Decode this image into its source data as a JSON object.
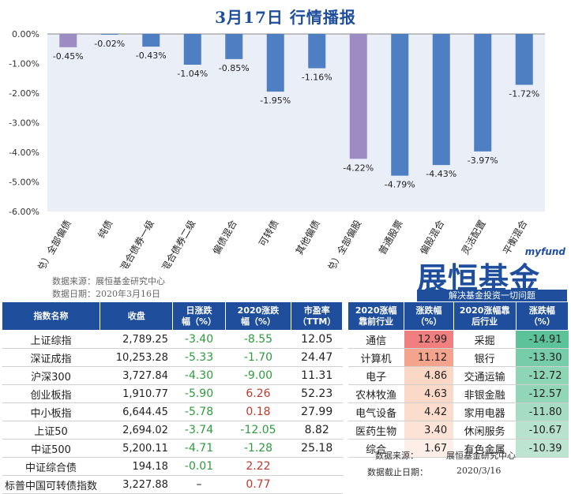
{
  "title": "3月17日  行情播报",
  "chart_data": {
    "type": "bar",
    "categories": [
      "（总）全部偏债",
      "纯债",
      "混合债券一级",
      "混合债券二级",
      "偏债混合",
      "可转债",
      "其他偏债",
      "（总）全部偏股",
      "普通股票",
      "偏股混合",
      "灵活配置",
      "平衡混合"
    ],
    "values": [
      -0.45,
      -0.02,
      -0.43,
      -1.04,
      -0.85,
      -1.95,
      -1.16,
      -4.22,
      -4.79,
      -4.43,
      -3.97,
      -1.72
    ],
    "data_labels": [
      "-0.45%",
      "-0.02%",
      "-0.43%",
      "-1.04%",
      "-0.85%",
      "-1.95%",
      "-1.16%",
      "-4.22%",
      "-4.79%",
      "-4.43%",
      "-3.97%",
      "-1.72%"
    ],
    "y_ticks": [
      "0.00%",
      "-1.00%",
      "-2.00%",
      "-3.00%",
      "-4.00%",
      "-5.00%",
      "-6.00%"
    ],
    "ylim": [
      -6,
      0
    ],
    "colors": {
      "summary": "#9d8cc4",
      "normal": "#4e7fc3"
    },
    "summary_indices": [
      0,
      7
    ]
  },
  "chart_source": {
    "line1": "数据来源：展恒基金研究中心",
    "line2": "数据日期：2020年3月16日"
  },
  "logo": {
    "small": "myfund",
    "big": "展恒基金",
    "slogan": "解决基金投资一切问题"
  },
  "index_table": {
    "headers": [
      "指数名称",
      "收盘",
      "日涨跌\n幅（%）",
      "2020涨跌\n幅（%）",
      "市盈率\n（TTM）"
    ],
    "rows": [
      {
        "name": "上证综指",
        "close": "2,789.25",
        "day": "-3.40",
        "ytd": "-8.55",
        "pe": "12.05"
      },
      {
        "name": "深证成指",
        "close": "10,253.28",
        "day": "-5.33",
        "ytd": "-1.70",
        "pe": "24.47"
      },
      {
        "name": "沪深300",
        "close": "3,727.84",
        "day": "-4.30",
        "ytd": "-9.00",
        "pe": "11.31"
      },
      {
        "name": "创业板指",
        "close": "1,910.77",
        "day": "-5.90",
        "ytd": "6.26",
        "pe": "52.23"
      },
      {
        "name": "中小板指",
        "close": "6,644.45",
        "day": "-5.78",
        "ytd": "0.18",
        "pe": "27.99"
      },
      {
        "name": "上证50",
        "close": "2,694.02",
        "day": "-3.74",
        "ytd": "-12.05",
        "pe": "8.82"
      },
      {
        "name": "中证500",
        "close": "5,200.11",
        "day": "-4.71",
        "ytd": "-1.28",
        "pe": "25.18"
      },
      {
        "name": "中证综合债",
        "close": "194.18",
        "day": "-0.01",
        "ytd": "2.22",
        "pe": ""
      },
      {
        "name": "标普中国可转债指数",
        "close": "3,227.88",
        "day": "–",
        "ytd": "0.77",
        "pe": ""
      }
    ]
  },
  "industry_table": {
    "headers": [
      "2020涨幅\n靠前行业",
      "涨跌幅\n（%）",
      "2020涨幅靠\n后行业",
      "涨跌幅\n（%）"
    ],
    "rows": [
      {
        "top": "通信",
        "top_val": "12.99",
        "bottom": "采掘",
        "bottom_val": "-14.91"
      },
      {
        "top": "计算机",
        "top_val": "11.12",
        "bottom": "银行",
        "bottom_val": "-13.30"
      },
      {
        "top": "电子",
        "top_val": "4.86",
        "bottom": "交通运输",
        "bottom_val": "-12.72"
      },
      {
        "top": "农林牧渔",
        "top_val": "4.63",
        "bottom": "非银金融",
        "bottom_val": "-12.57"
      },
      {
        "top": "电气设备",
        "top_val": "4.42",
        "bottom": "家用电器",
        "bottom_val": "-11.80"
      },
      {
        "top": "医药生物",
        "top_val": "3.40",
        "bottom": "休闲服务",
        "bottom_val": "-10.67"
      },
      {
        "top": "综合",
        "top_val": "1.67",
        "bottom": "有色金属",
        "bottom_val": "-10.39"
      }
    ],
    "top_colors": [
      "#f08080",
      "#f4a38d",
      "#fbd7c6",
      "#fbd9c9",
      "#fbdccd",
      "#fce3d6",
      "#fdeee7"
    ],
    "bottom_colors": [
      "#5cc29a",
      "#77cca9",
      "#8dd5b5",
      "#92d6b8",
      "#a5dcc3",
      "#b7e2cd",
      "#bde4d1"
    ]
  },
  "footer": {
    "label1": "数据来源：",
    "value1": "展恒基金研究中心",
    "label2": "数据截止日期：",
    "value2": "2020/3/16"
  }
}
